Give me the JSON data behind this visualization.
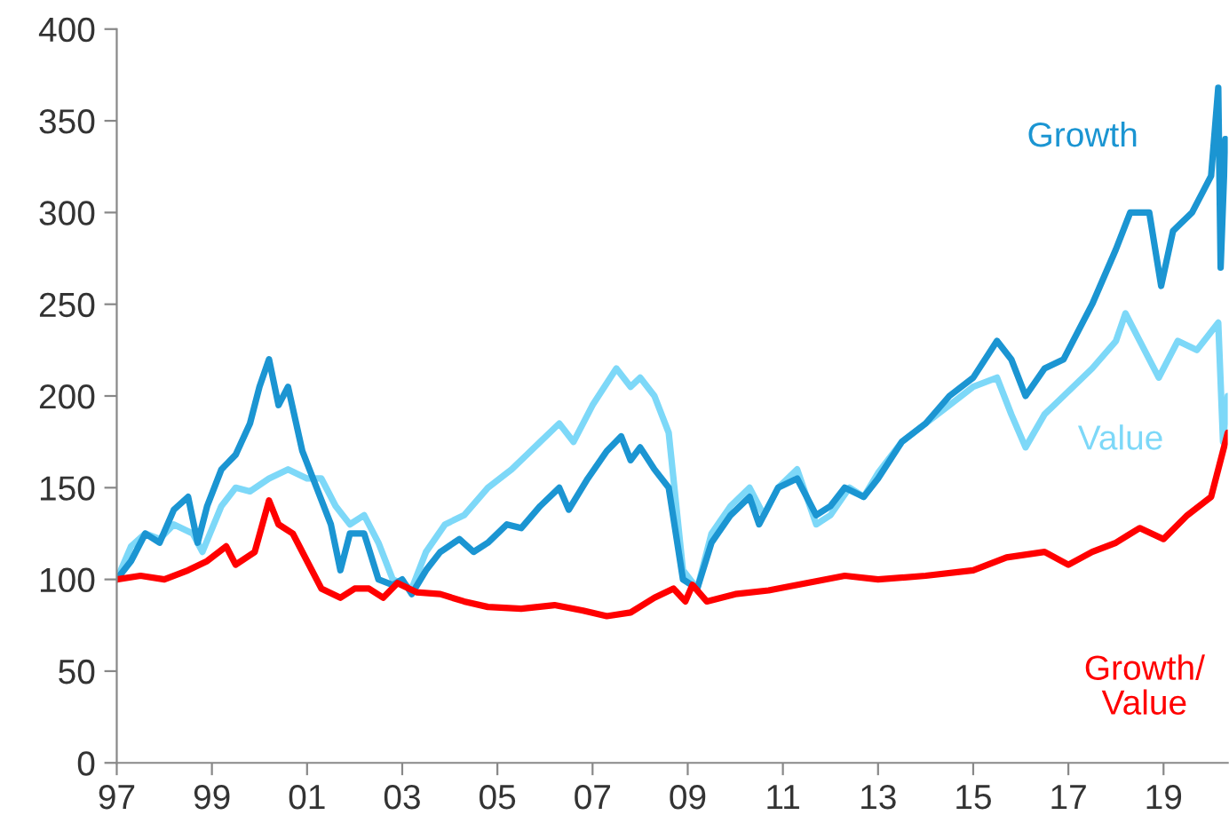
{
  "chart_data": {
    "type": "line",
    "xlim": [
      1997,
      2020.35
    ],
    "ylim": [
      0,
      400
    ],
    "xticks": [
      {
        "value": 1997,
        "label": "97"
      },
      {
        "value": 1999,
        "label": "99"
      },
      {
        "value": 2001,
        "label": "01"
      },
      {
        "value": 2003,
        "label": "03"
      },
      {
        "value": 2005,
        "label": "05"
      },
      {
        "value": 2007,
        "label": "07"
      },
      {
        "value": 2009,
        "label": "09"
      },
      {
        "value": 2011,
        "label": "11"
      },
      {
        "value": 2013,
        "label": "13"
      },
      {
        "value": 2015,
        "label": "15"
      },
      {
        "value": 2017,
        "label": "17"
      },
      {
        "value": 2019,
        "label": "19"
      }
    ],
    "yticks": [
      0,
      50,
      100,
      150,
      200,
      250,
      300,
      350,
      400
    ],
    "grid": false,
    "legend": false,
    "marker": "none",
    "line_style": "solid",
    "series": [
      {
        "name": "Value",
        "color": "#7dd8f8",
        "x": [
          1997.0,
          1997.3,
          1997.6,
          1997.9,
          1998.2,
          1998.6,
          1998.8,
          1999.2,
          1999.5,
          1999.8,
          2000.2,
          2000.6,
          2001.0,
          2001.3,
          2001.6,
          2001.9,
          2002.2,
          2002.5,
          2002.8,
          2003.2,
          2003.5,
          2003.9,
          2004.3,
          2004.8,
          2005.3,
          2005.9,
          2006.3,
          2006.6,
          2007.0,
          2007.5,
          2007.8,
          2008.0,
          2008.3,
          2008.6,
          2008.9,
          2009.2,
          2009.5,
          2009.9,
          2010.3,
          2010.6,
          2010.9,
          2011.3,
          2011.7,
          2012.0,
          2012.4,
          2012.7,
          2013.0,
          2013.5,
          2014.0,
          2014.5,
          2015.0,
          2015.5,
          2015.8,
          2016.1,
          2016.5,
          2016.9,
          2017.5,
          2018.0,
          2018.2,
          2018.6,
          2018.9,
          2019.3,
          2019.7,
          2020.0,
          2020.15,
          2020.25,
          2020.35
        ],
        "values": [
          100,
          118,
          125,
          122,
          130,
          125,
          115,
          140,
          150,
          148,
          155,
          160,
          155,
          155,
          140,
          130,
          135,
          120,
          100,
          95,
          115,
          130,
          135,
          150,
          160,
          175,
          185,
          175,
          195,
          215,
          205,
          210,
          200,
          180,
          105,
          95,
          125,
          140,
          150,
          135,
          150,
          160,
          130,
          135,
          150,
          145,
          158,
          175,
          185,
          195,
          205,
          210,
          190,
          172,
          190,
          200,
          215,
          230,
          245,
          225,
          210,
          230,
          225,
          235,
          240,
          175,
          200
        ]
      },
      {
        "name": "Growth",
        "color": "#1b95d2",
        "x": [
          1997.0,
          1997.3,
          1997.6,
          1997.9,
          1998.2,
          1998.5,
          1998.7,
          1998.9,
          1999.2,
          1999.5,
          1999.8,
          2000.0,
          2000.2,
          2000.4,
          2000.6,
          2000.9,
          2001.2,
          2001.5,
          2001.7,
          2001.9,
          2002.2,
          2002.5,
          2002.8,
          2003.0,
          2003.2,
          2003.5,
          2003.8,
          2004.2,
          2004.5,
          2004.8,
          2005.2,
          2005.5,
          2005.9,
          2006.3,
          2006.5,
          2006.9,
          2007.3,
          2007.6,
          2007.8,
          2008.0,
          2008.3,
          2008.6,
          2008.9,
          2009.2,
          2009.5,
          2009.9,
          2010.3,
          2010.5,
          2010.9,
          2011.3,
          2011.7,
          2012.0,
          2012.3,
          2012.7,
          2013.0,
          2013.5,
          2014.0,
          2014.5,
          2015.0,
          2015.5,
          2015.8,
          2016.1,
          2016.5,
          2016.9,
          2017.5,
          2018.0,
          2018.3,
          2018.7,
          2018.95,
          2019.2,
          2019.6,
          2020.0,
          2020.15,
          2020.2,
          2020.3
        ],
        "values": [
          100,
          110,
          125,
          120,
          138,
          145,
          120,
          140,
          160,
          168,
          185,
          205,
          220,
          195,
          205,
          170,
          150,
          130,
          105,
          125,
          125,
          100,
          97,
          100,
          92,
          105,
          115,
          122,
          115,
          120,
          130,
          128,
          140,
          150,
          138,
          155,
          170,
          178,
          165,
          172,
          160,
          150,
          100,
          95,
          120,
          135,
          145,
          130,
          150,
          155,
          135,
          140,
          150,
          145,
          155,
          175,
          185,
          200,
          210,
          230,
          220,
          200,
          215,
          220,
          250,
          280,
          300,
          300,
          260,
          290,
          300,
          320,
          368,
          270,
          340
        ]
      },
      {
        "name": "Growth/\nValue",
        "color": "#ff0000",
        "x": [
          1997.0,
          1997.5,
          1998.0,
          1998.5,
          1998.9,
          1999.3,
          1999.5,
          1999.9,
          2000.2,
          2000.4,
          2000.7,
          2001.0,
          2001.3,
          2001.7,
          2002.0,
          2002.3,
          2002.6,
          2002.9,
          2003.3,
          2003.8,
          2004.3,
          2004.8,
          2005.5,
          2006.2,
          2006.8,
          2007.3,
          2007.8,
          2008.3,
          2008.7,
          2008.95,
          2009.1,
          2009.4,
          2010.0,
          2010.7,
          2011.5,
          2012.3,
          2013.0,
          2014.0,
          2015.0,
          2015.7,
          2016.5,
          2017.0,
          2017.5,
          2018.0,
          2018.5,
          2019.0,
          2019.5,
          2020.0,
          2020.15,
          2020.35
        ],
        "values": [
          100,
          102,
          100,
          105,
          110,
          118,
          108,
          115,
          143,
          130,
          125,
          110,
          95,
          90,
          95,
          95,
          90,
          98,
          93,
          92,
          88,
          85,
          84,
          86,
          83,
          80,
          82,
          90,
          95,
          88,
          97,
          88,
          92,
          94,
          98,
          102,
          100,
          102,
          105,
          112,
          115,
          108,
          115,
          120,
          128,
          122,
          135,
          145,
          160,
          180
        ]
      }
    ]
  }
}
